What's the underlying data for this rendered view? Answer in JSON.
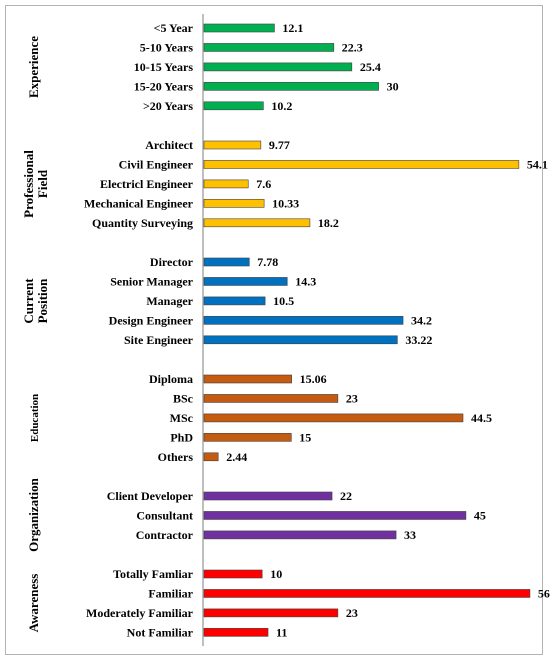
{
  "chart_data": {
    "type": "bar",
    "orientation": "horizontal",
    "groups": [
      {
        "name": "Experience",
        "color": "#00b050",
        "categories": [
          "<5 Year",
          "5-10 Years",
          "10-15 Years",
          "15-20 Years",
          ">20 Years"
        ],
        "values": [
          12.1,
          22.3,
          25.4,
          30,
          10.2
        ],
        "labels": [
          "12.1",
          "22.3",
          "25.4",
          "30",
          "10.2"
        ]
      },
      {
        "name": "Professional Field",
        "color": "#ffc000",
        "categories": [
          "Architect",
          "Civil Engineer",
          "Electricl Engineer",
          "Mechanical Engineer",
          "Quantity Surveying"
        ],
        "values": [
          9.77,
          54.1,
          7.6,
          10.33,
          18.2
        ],
        "labels": [
          "9.77",
          "54.1",
          "7.6",
          "10.33",
          "18.2"
        ]
      },
      {
        "name": "Current Position",
        "color": "#0070c0",
        "categories": [
          "Director",
          "Senior Manager",
          "Manager",
          "Design Engineer",
          "Site Engineer"
        ],
        "values": [
          7.78,
          14.3,
          10.5,
          34.2,
          33.22
        ],
        "labels": [
          "7.78",
          "14.3",
          "10.5",
          "34.2",
          "33.22"
        ]
      },
      {
        "name": "Education",
        "color": "#c55a11",
        "categories": [
          "Diploma",
          "BSc",
          "MSc",
          "PhD",
          "Others"
        ],
        "values": [
          15.06,
          23,
          44.5,
          15,
          2.44
        ],
        "labels": [
          "15.06",
          "23",
          "44.5",
          "15",
          "2.44"
        ]
      },
      {
        "name": "Organization",
        "color": "#7030a0",
        "categories": [
          "Client Developer",
          "Consultant",
          "Contractor"
        ],
        "values": [
          22,
          45,
          33
        ],
        "labels": [
          "22",
          "45",
          "33"
        ]
      },
      {
        "name": "Awareness",
        "color": "#ff0000",
        "categories": [
          "Totally Famliar",
          "Familiar",
          "Moderately Familiar",
          "Not Familiar"
        ],
        "values": [
          10,
          56,
          23,
          11
        ],
        "labels": [
          "10",
          "56",
          "23",
          "11"
        ]
      }
    ],
    "xlim": [
      0,
      56
    ],
    "title": "",
    "xlabel": "",
    "ylabel": "",
    "grid": false,
    "legend": "none"
  }
}
